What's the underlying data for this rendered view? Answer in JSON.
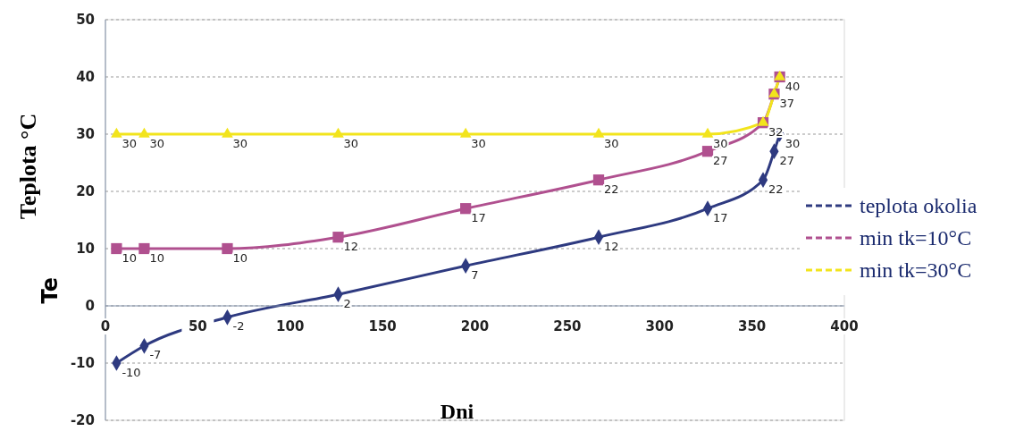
{
  "chart_data": {
    "type": "line",
    "xlabel": "Dni",
    "ylabel": "Teplota °C",
    "annotations": [
      "Te"
    ],
    "xlim": [
      0,
      400
    ],
    "xticks": [
      0,
      50,
      100,
      150,
      200,
      250,
      300,
      350,
      400
    ],
    "ylim": [
      -20,
      50
    ],
    "yticks": [
      -20,
      -10,
      0,
      10,
      20,
      30,
      40,
      50
    ],
    "grid": "y",
    "legend": "right",
    "data_labels": true,
    "series": [
      {
        "name": "teplota okolia",
        "color": "#2e3a80",
        "marker": "diamond",
        "x": [
          6,
          21,
          66,
          126,
          195,
          267,
          326,
          356,
          362,
          365
        ],
        "values": [
          -10,
          -7,
          -2,
          2,
          7,
          12,
          17,
          22,
          27,
          30
        ]
      },
      {
        "name": "min tk=10°C",
        "color": "#b0508f",
        "marker": "square",
        "x": [
          6,
          21,
          66,
          126,
          195,
          267,
          326,
          356,
          362,
          365
        ],
        "values": [
          10,
          10,
          10,
          12,
          17,
          22,
          27,
          32,
          37,
          40
        ],
        "value_labels": [
          "10",
          "10",
          "10",
          "12",
          "17",
          "22",
          "27",
          null,
          null,
          null
        ]
      },
      {
        "name": "min tk=30°C",
        "color": "#f2e41c",
        "marker": "triangle",
        "x": [
          6,
          21,
          66,
          126,
          195,
          267,
          326,
          356,
          362,
          365
        ],
        "values": [
          30,
          30,
          30,
          30,
          30,
          30,
          30,
          32,
          37,
          40
        ]
      }
    ]
  }
}
